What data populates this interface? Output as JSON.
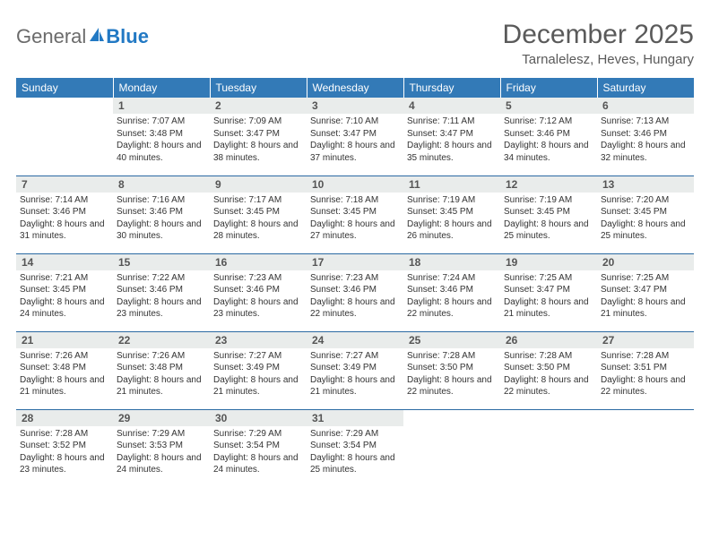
{
  "brand": {
    "part1": "General",
    "part2": "Blue"
  },
  "title": "December 2025",
  "location": "Tarnalelesz, Heves, Hungary",
  "colors": {
    "header_bg": "#337ab7",
    "header_fg": "#ffffff",
    "daynum_bg": "#e9eceb",
    "rule": "#2b6aa3",
    "brand_gray": "#6b6b6b",
    "brand_blue": "#2279c4"
  },
  "weekdays": [
    "Sunday",
    "Monday",
    "Tuesday",
    "Wednesday",
    "Thursday",
    "Friday",
    "Saturday"
  ],
  "weeks": [
    [
      {
        "n": "",
        "sunrise": "",
        "sunset": "",
        "daylight": ""
      },
      {
        "n": "1",
        "sunrise": "Sunrise: 7:07 AM",
        "sunset": "Sunset: 3:48 PM",
        "daylight": "Daylight: 8 hours and 40 minutes."
      },
      {
        "n": "2",
        "sunrise": "Sunrise: 7:09 AM",
        "sunset": "Sunset: 3:47 PM",
        "daylight": "Daylight: 8 hours and 38 minutes."
      },
      {
        "n": "3",
        "sunrise": "Sunrise: 7:10 AM",
        "sunset": "Sunset: 3:47 PM",
        "daylight": "Daylight: 8 hours and 37 minutes."
      },
      {
        "n": "4",
        "sunrise": "Sunrise: 7:11 AM",
        "sunset": "Sunset: 3:47 PM",
        "daylight": "Daylight: 8 hours and 35 minutes."
      },
      {
        "n": "5",
        "sunrise": "Sunrise: 7:12 AM",
        "sunset": "Sunset: 3:46 PM",
        "daylight": "Daylight: 8 hours and 34 minutes."
      },
      {
        "n": "6",
        "sunrise": "Sunrise: 7:13 AM",
        "sunset": "Sunset: 3:46 PM",
        "daylight": "Daylight: 8 hours and 32 minutes."
      }
    ],
    [
      {
        "n": "7",
        "sunrise": "Sunrise: 7:14 AM",
        "sunset": "Sunset: 3:46 PM",
        "daylight": "Daylight: 8 hours and 31 minutes."
      },
      {
        "n": "8",
        "sunrise": "Sunrise: 7:16 AM",
        "sunset": "Sunset: 3:46 PM",
        "daylight": "Daylight: 8 hours and 30 minutes."
      },
      {
        "n": "9",
        "sunrise": "Sunrise: 7:17 AM",
        "sunset": "Sunset: 3:45 PM",
        "daylight": "Daylight: 8 hours and 28 minutes."
      },
      {
        "n": "10",
        "sunrise": "Sunrise: 7:18 AM",
        "sunset": "Sunset: 3:45 PM",
        "daylight": "Daylight: 8 hours and 27 minutes."
      },
      {
        "n": "11",
        "sunrise": "Sunrise: 7:19 AM",
        "sunset": "Sunset: 3:45 PM",
        "daylight": "Daylight: 8 hours and 26 minutes."
      },
      {
        "n": "12",
        "sunrise": "Sunrise: 7:19 AM",
        "sunset": "Sunset: 3:45 PM",
        "daylight": "Daylight: 8 hours and 25 minutes."
      },
      {
        "n": "13",
        "sunrise": "Sunrise: 7:20 AM",
        "sunset": "Sunset: 3:45 PM",
        "daylight": "Daylight: 8 hours and 25 minutes."
      }
    ],
    [
      {
        "n": "14",
        "sunrise": "Sunrise: 7:21 AM",
        "sunset": "Sunset: 3:45 PM",
        "daylight": "Daylight: 8 hours and 24 minutes."
      },
      {
        "n": "15",
        "sunrise": "Sunrise: 7:22 AM",
        "sunset": "Sunset: 3:46 PM",
        "daylight": "Daylight: 8 hours and 23 minutes."
      },
      {
        "n": "16",
        "sunrise": "Sunrise: 7:23 AM",
        "sunset": "Sunset: 3:46 PM",
        "daylight": "Daylight: 8 hours and 23 minutes."
      },
      {
        "n": "17",
        "sunrise": "Sunrise: 7:23 AM",
        "sunset": "Sunset: 3:46 PM",
        "daylight": "Daylight: 8 hours and 22 minutes."
      },
      {
        "n": "18",
        "sunrise": "Sunrise: 7:24 AM",
        "sunset": "Sunset: 3:46 PM",
        "daylight": "Daylight: 8 hours and 22 minutes."
      },
      {
        "n": "19",
        "sunrise": "Sunrise: 7:25 AM",
        "sunset": "Sunset: 3:47 PM",
        "daylight": "Daylight: 8 hours and 21 minutes."
      },
      {
        "n": "20",
        "sunrise": "Sunrise: 7:25 AM",
        "sunset": "Sunset: 3:47 PM",
        "daylight": "Daylight: 8 hours and 21 minutes."
      }
    ],
    [
      {
        "n": "21",
        "sunrise": "Sunrise: 7:26 AM",
        "sunset": "Sunset: 3:48 PM",
        "daylight": "Daylight: 8 hours and 21 minutes."
      },
      {
        "n": "22",
        "sunrise": "Sunrise: 7:26 AM",
        "sunset": "Sunset: 3:48 PM",
        "daylight": "Daylight: 8 hours and 21 minutes."
      },
      {
        "n": "23",
        "sunrise": "Sunrise: 7:27 AM",
        "sunset": "Sunset: 3:49 PM",
        "daylight": "Daylight: 8 hours and 21 minutes."
      },
      {
        "n": "24",
        "sunrise": "Sunrise: 7:27 AM",
        "sunset": "Sunset: 3:49 PM",
        "daylight": "Daylight: 8 hours and 21 minutes."
      },
      {
        "n": "25",
        "sunrise": "Sunrise: 7:28 AM",
        "sunset": "Sunset: 3:50 PM",
        "daylight": "Daylight: 8 hours and 22 minutes."
      },
      {
        "n": "26",
        "sunrise": "Sunrise: 7:28 AM",
        "sunset": "Sunset: 3:50 PM",
        "daylight": "Daylight: 8 hours and 22 minutes."
      },
      {
        "n": "27",
        "sunrise": "Sunrise: 7:28 AM",
        "sunset": "Sunset: 3:51 PM",
        "daylight": "Daylight: 8 hours and 22 minutes."
      }
    ],
    [
      {
        "n": "28",
        "sunrise": "Sunrise: 7:28 AM",
        "sunset": "Sunset: 3:52 PM",
        "daylight": "Daylight: 8 hours and 23 minutes."
      },
      {
        "n": "29",
        "sunrise": "Sunrise: 7:29 AM",
        "sunset": "Sunset: 3:53 PM",
        "daylight": "Daylight: 8 hours and 24 minutes."
      },
      {
        "n": "30",
        "sunrise": "Sunrise: 7:29 AM",
        "sunset": "Sunset: 3:54 PM",
        "daylight": "Daylight: 8 hours and 24 minutes."
      },
      {
        "n": "31",
        "sunrise": "Sunrise: 7:29 AM",
        "sunset": "Sunset: 3:54 PM",
        "daylight": "Daylight: 8 hours and 25 minutes."
      },
      {
        "n": "",
        "sunrise": "",
        "sunset": "",
        "daylight": ""
      },
      {
        "n": "",
        "sunrise": "",
        "sunset": "",
        "daylight": ""
      },
      {
        "n": "",
        "sunrise": "",
        "sunset": "",
        "daylight": ""
      }
    ]
  ]
}
